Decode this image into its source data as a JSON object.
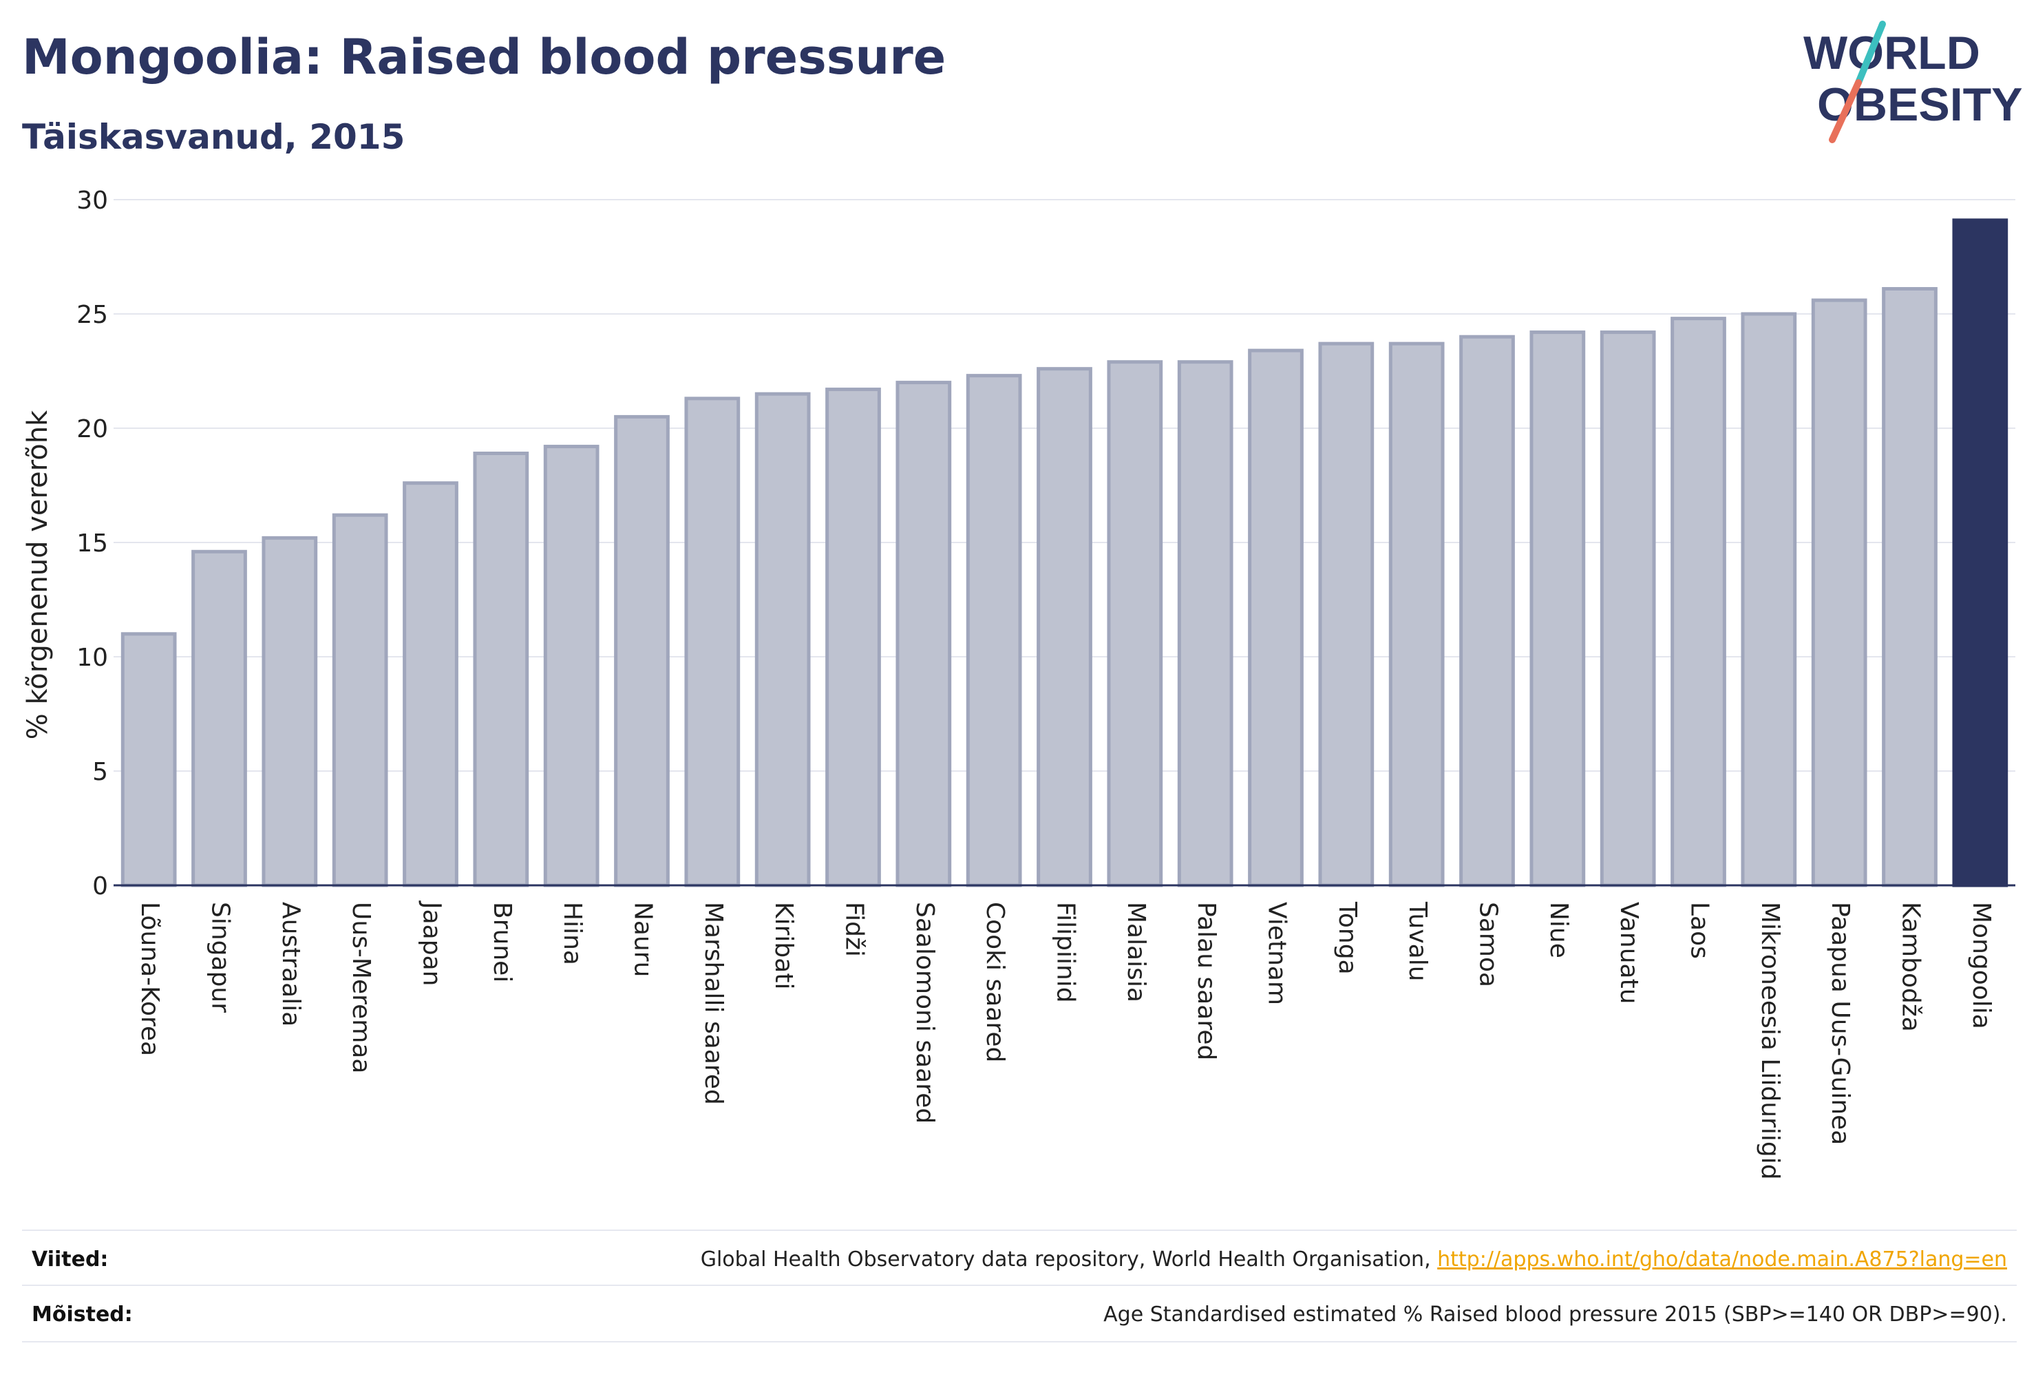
{
  "header": {
    "title": "Mongoolia: Raised blood pressure",
    "subtitle": "Täiskasvanud, 2015"
  },
  "logo": {
    "line1": "WORLD",
    "line2": "OBESITY",
    "colors": {
      "text": "#2c3561",
      "slash_top": "#3cbfbf",
      "slash_bottom": "#e8705a"
    }
  },
  "chart_data": {
    "type": "bar",
    "title": "",
    "xlabel": "",
    "ylabel": "% kõrgenenud vererõhk",
    "ylim": [
      0,
      30
    ],
    "yticks": [
      0,
      5,
      10,
      15,
      20,
      25,
      30
    ],
    "grid": true,
    "categories": [
      "Lõuna-Korea",
      "Singapur",
      "Austraalia",
      "Uus-Meremaa",
      "Jaapan",
      "Brunei",
      "Hiina",
      "Nauru",
      "Marshalli saared",
      "Kiribati",
      "Fidži",
      "Saalomoni saared",
      "Cooki saared",
      "Filipiinid",
      "Malaisia",
      "Palau saared",
      "Vietnam",
      "Tonga",
      "Tuvalu",
      "Samoa",
      "Niue",
      "Vanuatu",
      "Laos",
      "Mikroneesia Liiduriigid",
      "Paapua Uus-Guinea",
      "Kambodža",
      "Mongoolia"
    ],
    "values": [
      11.0,
      14.6,
      15.2,
      16.2,
      17.6,
      18.9,
      19.2,
      20.5,
      21.3,
      21.5,
      21.7,
      22.0,
      22.3,
      22.6,
      22.9,
      22.9,
      23.4,
      23.7,
      23.7,
      24.0,
      24.2,
      24.2,
      24.8,
      25.0,
      25.6,
      26.1,
      29.1
    ],
    "highlight": "Mongoolia",
    "colors": {
      "bar_fill": "#bec2d0",
      "bar_stroke": "#a0a6bc",
      "highlight": "#2c3561",
      "grid": "#e4e6ee",
      "axis": "#2c3561"
    }
  },
  "references": {
    "sources_label": "Viited:",
    "sources_text": "Global Health Observatory data repository, World Health Organisation, ",
    "sources_link": "http://apps.who.int/gho/data/node.main.A875?lang=en",
    "definitions_label": "Mõisted:",
    "definitions_text": "Age Standardised estimated % Raised blood pressure 2015 (SBP>=140 OR DBP>=90)."
  }
}
